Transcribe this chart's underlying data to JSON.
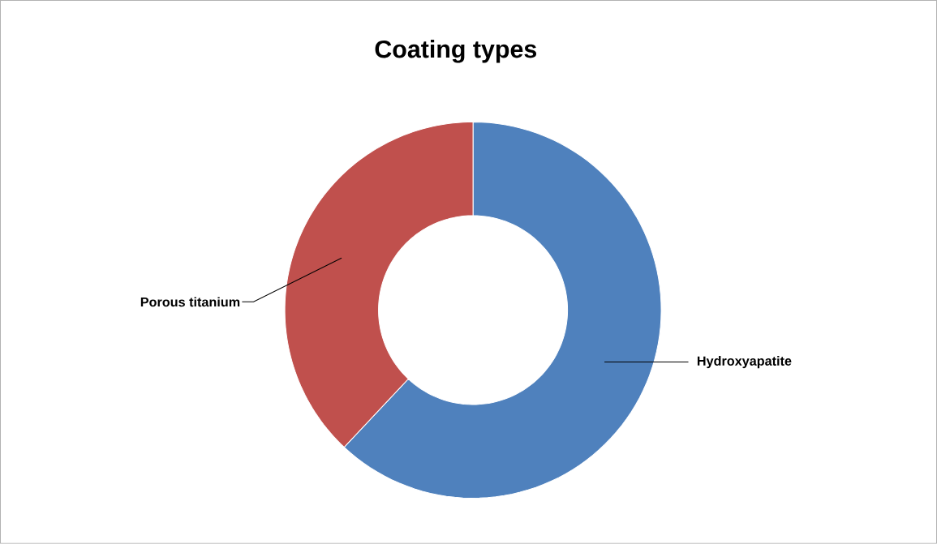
{
  "chart_data": {
    "type": "donut",
    "title": "Coating types",
    "categories": [
      "Hydroxyapatite",
      "Porous titanium"
    ],
    "values": [
      62,
      38
    ],
    "colors": [
      "#4f81bd",
      "#c0504d"
    ]
  }
}
